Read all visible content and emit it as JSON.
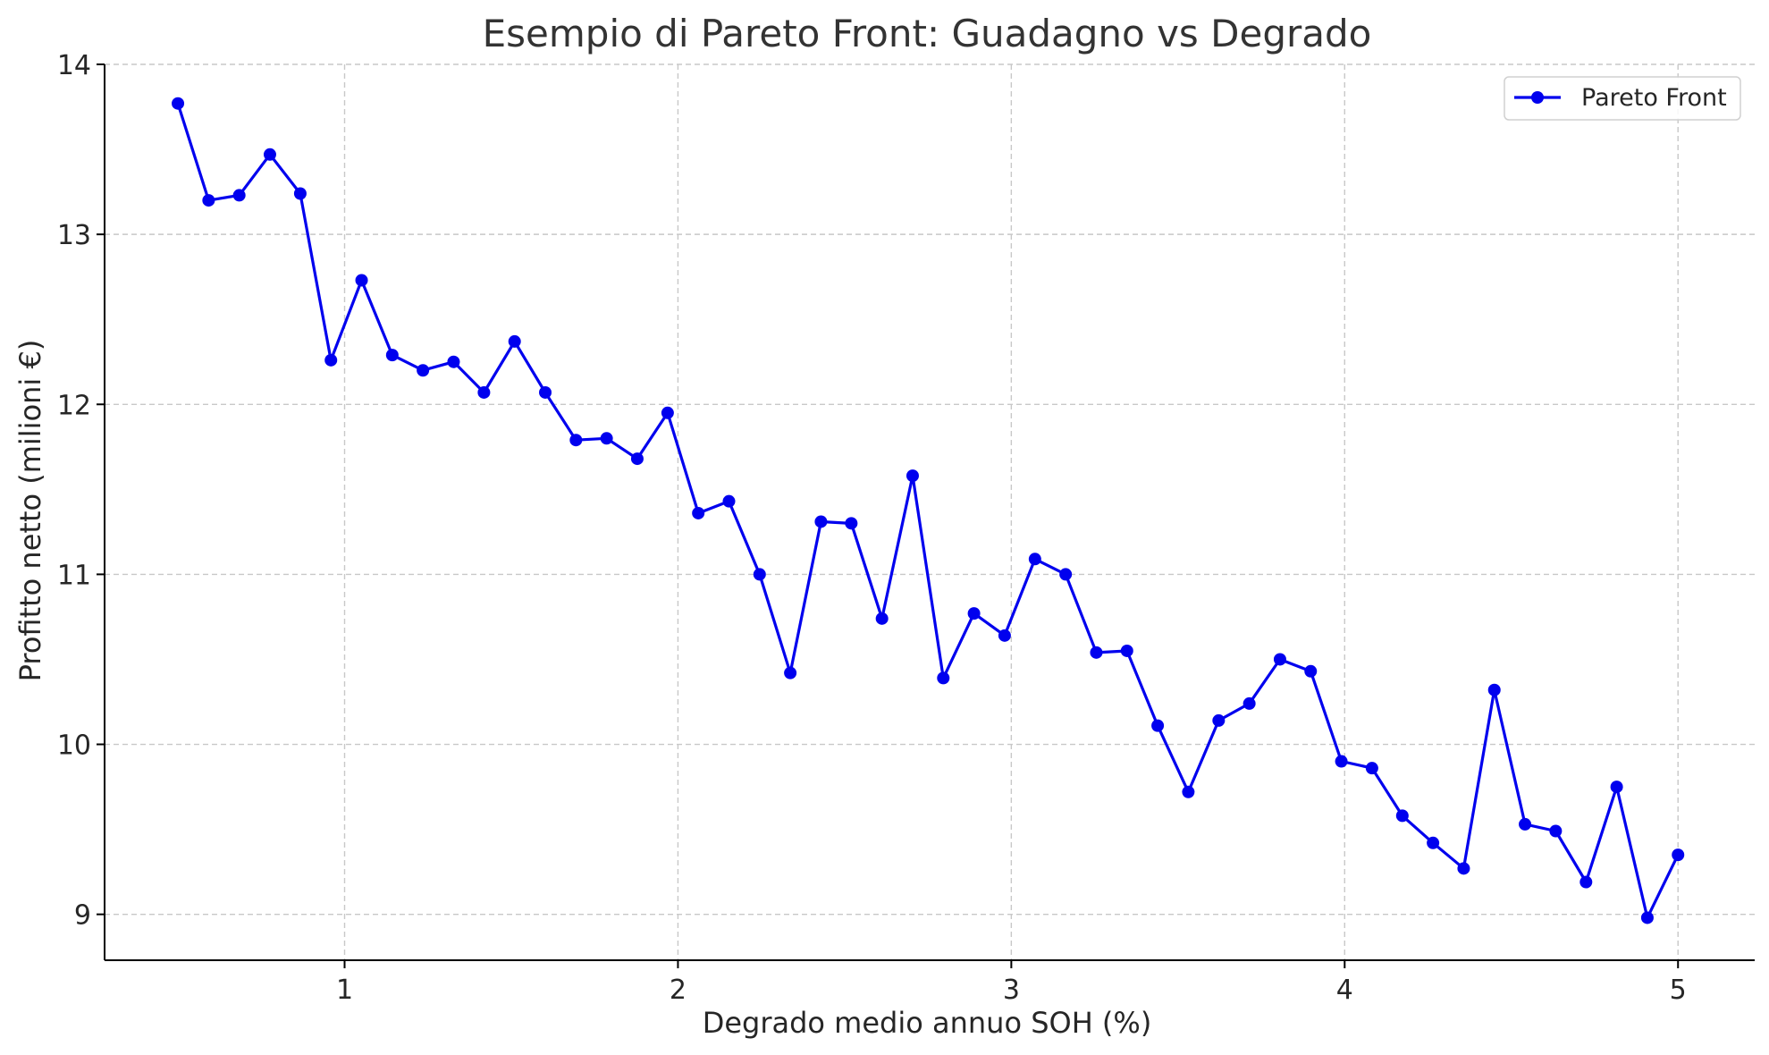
{
  "chart_data": {
    "type": "line",
    "title": "Esempio di Pareto Front: Guadagno vs Degrado",
    "xlabel": "Degrado medio annuo SOH (%)",
    "ylabel": "Profitto netto (milioni €)",
    "xlim": [
      0.28,
      5.23
    ],
    "ylim": [
      8.73,
      14.0
    ],
    "xticks": [
      1,
      2,
      3,
      4,
      5
    ],
    "yticks": [
      9,
      10,
      11,
      12,
      13,
      14
    ],
    "grid": true,
    "legend_position": "top-right",
    "series": [
      {
        "name": "Pareto Front",
        "color": "#0000ee",
        "marker": "circle",
        "x": [
          0.5,
          0.592,
          0.684,
          0.776,
          0.867,
          0.959,
          1.051,
          1.143,
          1.235,
          1.327,
          1.418,
          1.51,
          1.602,
          1.694,
          1.786,
          1.878,
          1.969,
          2.061,
          2.153,
          2.245,
          2.337,
          2.429,
          2.52,
          2.612,
          2.704,
          2.796,
          2.888,
          2.98,
          3.071,
          3.163,
          3.255,
          3.347,
          3.439,
          3.531,
          3.622,
          3.714,
          3.806,
          3.898,
          3.99,
          4.082,
          4.173,
          4.265,
          4.357,
          4.449,
          4.541,
          4.633,
          4.724,
          4.816,
          4.908,
          5.0
        ],
        "y": [
          13.77,
          13.2,
          13.23,
          13.47,
          13.24,
          12.26,
          12.73,
          12.29,
          12.2,
          12.25,
          12.07,
          12.37,
          12.07,
          11.79,
          11.8,
          11.68,
          11.95,
          11.36,
          11.43,
          11.0,
          10.42,
          11.31,
          11.3,
          10.74,
          11.58,
          10.39,
          10.77,
          10.64,
          11.09,
          11.0,
          10.54,
          10.55,
          10.11,
          9.72,
          10.14,
          10.24,
          10.5,
          10.43,
          9.9,
          9.86,
          9.58,
          9.42,
          9.27,
          10.32,
          9.53,
          9.49,
          9.19,
          9.75,
          8.98,
          9.35
        ]
      }
    ]
  }
}
